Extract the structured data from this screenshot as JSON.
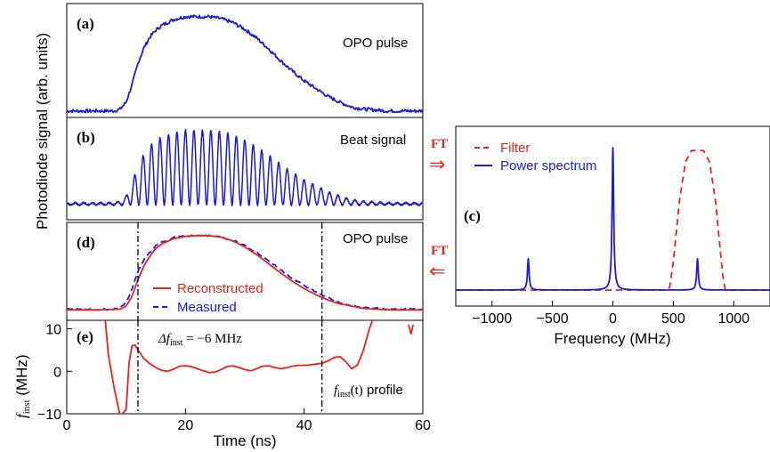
{
  "colors": {
    "blue": "#1a1adc",
    "red": "#e8231b",
    "axis": "#000000",
    "dashdot": "#000000"
  },
  "panels": {
    "a": {
      "letter": "(a)",
      "label": "OPO pulse"
    },
    "b": {
      "letter": "(b)",
      "label": "Beat signal"
    },
    "c": {
      "letter": "(c)"
    },
    "d": {
      "letter": "(d)",
      "label": "OPO pulse",
      "legend": [
        "Reconstructed",
        "Measured"
      ]
    },
    "e": {
      "letter": "(e)",
      "delta_label": "Δf",
      "delta_sub": "inst",
      "delta_value": " = −6 MHz",
      "profile_f": "f",
      "profile_sub": "inst",
      "profile_t": "(t)",
      "profile_word": " profile"
    }
  },
  "left_ylabel": "Photodiode signal (arb. units)",
  "e_ylabel": {
    "f": "f",
    "sub": "inst",
    "unit": " (MHz)"
  },
  "ft_top": {
    "label": "FT",
    "arrow": "⇒"
  },
  "ft_bottom": {
    "label": "FT",
    "arrow": "⇐"
  },
  "chart_data": [
    {
      "panel": "a",
      "type": "line",
      "label": "OPO pulse",
      "xlim": [
        0,
        60
      ],
      "ylim": [
        0,
        1.08
      ],
      "series": [
        {
          "color": "blue",
          "x": [
            0,
            5,
            8,
            9,
            10,
            11,
            12,
            13,
            14,
            15,
            16,
            17,
            18,
            20,
            22,
            24,
            26,
            28,
            30,
            32,
            34,
            36,
            38,
            40,
            42,
            44,
            46,
            48,
            50,
            52,
            54,
            56,
            58,
            60
          ],
          "y": [
            0.03,
            0.03,
            0.03,
            0.05,
            0.12,
            0.3,
            0.52,
            0.68,
            0.79,
            0.86,
            0.91,
            0.94,
            0.97,
            1.0,
            1.0,
            1.0,
            0.98,
            0.94,
            0.87,
            0.78,
            0.67,
            0.55,
            0.44,
            0.34,
            0.26,
            0.18,
            0.12,
            0.07,
            0.05,
            0.04,
            0.03,
            0.03,
            0.03,
            0.03
          ]
        }
      ]
    },
    {
      "panel": "b",
      "type": "line",
      "label": "Beat signal",
      "xlim": [
        0,
        60
      ],
      "ylim": [
        -0.15,
        1.1
      ],
      "envelope_x": [
        0,
        5,
        8,
        9,
        10,
        11,
        12,
        13,
        14,
        15,
        16,
        17,
        18,
        20,
        22,
        24,
        26,
        28,
        30,
        32,
        34,
        36,
        38,
        40,
        42,
        44,
        46,
        48,
        50,
        52,
        54,
        56,
        58,
        60
      ],
      "envelope_y": [
        0.03,
        0.03,
        0.03,
        0.05,
        0.12,
        0.3,
        0.52,
        0.68,
        0.79,
        0.86,
        0.91,
        0.94,
        0.97,
        1.0,
        1.0,
        1.0,
        0.98,
        0.94,
        0.87,
        0.78,
        0.67,
        0.55,
        0.44,
        0.34,
        0.26,
        0.18,
        0.12,
        0.07,
        0.05,
        0.04,
        0.03,
        0.03,
        0.03,
        0.03
      ],
      "beat_frequency_mhz": 700
    },
    {
      "panel": "c",
      "type": "line",
      "xlabel": "Frequency (MHz)",
      "xlim": [
        -1300,
        1300
      ],
      "ylim": [
        0,
        1.1
      ],
      "xticks": [
        -1000,
        -500,
        0,
        500,
        1000
      ],
      "series": [
        {
          "name": "Filter",
          "color": "red",
          "style": "dashed",
          "x": [
            -1300,
            450,
            470,
            500,
            550,
            600,
            650,
            700,
            750,
            800,
            850,
            880,
            910,
            930,
            1300
          ],
          "y": [
            0,
            0,
            0.02,
            0.2,
            0.62,
            0.9,
            0.98,
            0.98,
            0.98,
            0.9,
            0.62,
            0.35,
            0.1,
            0,
            0
          ]
        },
        {
          "name": "Power spectrum",
          "color": "blue",
          "style": "solid",
          "peaks": [
            [
              -700,
              0.22
            ],
            [
              0,
              1.0
            ],
            [
              700,
              0.22
            ]
          ],
          "peak_width_mhz": 8
        }
      ]
    },
    {
      "panel": "d",
      "type": "line",
      "label": "OPO pulse",
      "xlim": [
        0,
        60
      ],
      "ylim": [
        0,
        1.08
      ],
      "markers_x": [
        12,
        43
      ],
      "series": [
        {
          "name": "Reconstructed",
          "color": "red",
          "style": "solid",
          "x": [
            0,
            5,
            9,
            10,
            11,
            12,
            13,
            14,
            15,
            16,
            18,
            20,
            22,
            24,
            26,
            28,
            30,
            32,
            34,
            36,
            38,
            40,
            42,
            44,
            46,
            48,
            50,
            52,
            55,
            60
          ],
          "y": [
            0.02,
            0.02,
            0.03,
            0.07,
            0.2,
            0.42,
            0.6,
            0.73,
            0.83,
            0.89,
            0.96,
            0.99,
            1.0,
            1.0,
            0.98,
            0.93,
            0.85,
            0.75,
            0.63,
            0.51,
            0.4,
            0.3,
            0.22,
            0.15,
            0.1,
            0.07,
            0.04,
            0.03,
            0.02,
            0.02
          ]
        },
        {
          "name": "Measured",
          "color": "blue",
          "style": "dashed",
          "x": [
            0,
            5,
            8,
            9,
            10,
            11,
            12,
            13,
            14,
            15,
            16,
            17,
            18,
            20,
            22,
            24,
            26,
            28,
            30,
            32,
            34,
            36,
            38,
            40,
            42,
            44,
            46,
            48,
            50,
            52,
            54,
            56,
            58,
            60
          ],
          "y": [
            0.03,
            0.03,
            0.03,
            0.05,
            0.12,
            0.3,
            0.52,
            0.68,
            0.79,
            0.86,
            0.91,
            0.94,
            0.97,
            1.0,
            1.0,
            1.0,
            0.98,
            0.94,
            0.87,
            0.78,
            0.67,
            0.55,
            0.44,
            0.34,
            0.26,
            0.18,
            0.12,
            0.07,
            0.05,
            0.04,
            0.03,
            0.03,
            0.03,
            0.03
          ]
        }
      ]
    },
    {
      "panel": "e",
      "type": "line",
      "xlabel": "Time (ns)",
      "xlim": [
        0,
        60
      ],
      "ylim": [
        -10,
        12
      ],
      "xticks": [
        0,
        20,
        40,
        60
      ],
      "yticks": [
        -10,
        0,
        10
      ],
      "markers_x": [
        12,
        43
      ],
      "series": [
        {
          "name": "finst",
          "color": "red",
          "style": "solid",
          "x": [
            6.5,
            7,
            8,
            9,
            10,
            10.5,
            11,
            11.5,
            12,
            13,
            14,
            15,
            16,
            17,
            18,
            19,
            20,
            21,
            22,
            23,
            24,
            25,
            26,
            27,
            28,
            29,
            30,
            31,
            32,
            33,
            34,
            35,
            36,
            37,
            38,
            39,
            40,
            41,
            42,
            43,
            44,
            45,
            46,
            47,
            48,
            49,
            50,
            51,
            52
          ],
          "y": [
            12,
            4,
            -4,
            -10.5,
            -9,
            2,
            6,
            6.2,
            5,
            3,
            1.8,
            0.9,
            0.2,
            0,
            0.5,
            1.2,
            1.3,
            1.1,
            0.6,
            0.1,
            -0.3,
            -0.2,
            0.4,
            1.1,
            1.3,
            0.9,
            0.4,
            0.1,
            0.6,
            1.2,
            1.3,
            0.9,
            0.6,
            0.8,
            1.2,
            1.4,
            1.4,
            1.5,
            1.7,
            1.9,
            2.4,
            3.2,
            3.5,
            2.3,
            0.6,
            1.5,
            5,
            10,
            14
          ]
        }
      ]
    }
  ]
}
